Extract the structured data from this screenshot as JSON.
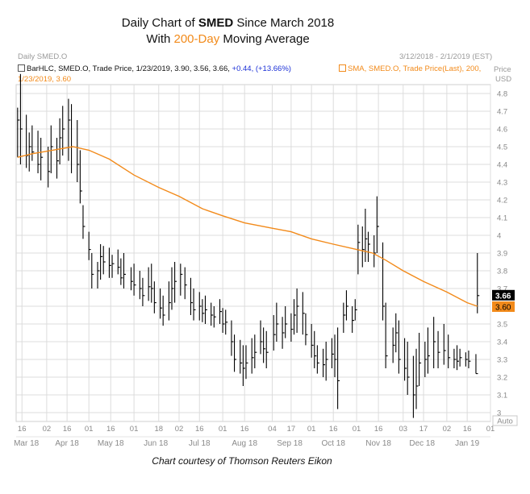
{
  "title": {
    "line1_prefix": "Daily Chart of ",
    "line1_bold": "SMED",
    "line1_suffix": " Since March 2018",
    "line2_prefix": "With ",
    "line2_highlight": "200-Day",
    "line2_suffix": " Moving Average"
  },
  "header": {
    "symbol": "Daily SMED.O",
    "date_range": "3/12/2018 - 2/1/2019 (EST)"
  },
  "legend": {
    "bar_prefix": "BarHLC, SMED.O, Trade Price, 1/23/2019, 3.90, 3.56, 3.66, ",
    "bar_change": "+0.44, (+13.66%)",
    "sma_line1": "SMA, SMED.O, Trade Price(Last), 200,",
    "sma_line2": "1/23/2019, 3.60"
  },
  "axis": {
    "price_label": "Price",
    "unit_label": "USD",
    "auto_label": "Auto",
    "y_ticks": [
      "4.8",
      "4.7",
      "4.6",
      "4.5",
      "4.4",
      "4.3",
      "4.2",
      "4.1",
      "4",
      "3.9",
      "3.8",
      "3.7",
      "3.6",
      "3.5",
      "3.4",
      "3.3",
      "3.2",
      "3.1",
      "3"
    ],
    "day_ticks": [
      "16",
      "02",
      "16",
      "01",
      "16",
      "01",
      "18",
      "02",
      "16",
      "01",
      "16",
      "04",
      "17",
      "01",
      "16",
      "01",
      "16",
      "03",
      "17",
      "02",
      "16",
      "01"
    ],
    "month_ticks": [
      "Mar 18",
      "Apr 18",
      "May 18",
      "Jun 18",
      "Jul 18",
      "Aug 18",
      "Sep 18",
      "Oct 18",
      "Nov 18",
      "Dec 18",
      "Jan 19"
    ]
  },
  "credit": "Chart courtesy of Thomson Reuters Eikon",
  "chart_data": {
    "type": "bar",
    "subtype": "HLC bars with moving average line",
    "x_range": [
      "2018-03-12",
      "2019-02-01"
    ],
    "ylim": [
      2.95,
      4.85
    ],
    "last_price_label": "3.66",
    "ma_label": "3.60",
    "colors": {
      "bars": "#000000",
      "ma": "#f28a1a",
      "grid": "#d9d9d9",
      "legend_change": "#1a2fd6"
    },
    "ma_series": {
      "name": "SMA 200",
      "points": [
        [
          "2018-03-13",
          4.44
        ],
        [
          "2018-03-23",
          4.46
        ],
        [
          "2018-04-06",
          4.48
        ],
        [
          "2018-04-20",
          4.5
        ],
        [
          "2018-05-01",
          4.48
        ],
        [
          "2018-05-15",
          4.43
        ],
        [
          "2018-06-01",
          4.34
        ],
        [
          "2018-06-18",
          4.27
        ],
        [
          "2018-07-02",
          4.22
        ],
        [
          "2018-07-18",
          4.15
        ],
        [
          "2018-08-01",
          4.11
        ],
        [
          "2018-08-16",
          4.07
        ],
        [
          "2018-09-04",
          4.04
        ],
        [
          "2018-09-17",
          4.02
        ],
        [
          "2018-10-01",
          3.98
        ],
        [
          "2018-10-16",
          3.95
        ],
        [
          "2018-11-01",
          3.92
        ],
        [
          "2018-11-12",
          3.9
        ],
        [
          "2018-11-21",
          3.86
        ],
        [
          "2018-12-03",
          3.8
        ],
        [
          "2018-12-17",
          3.74
        ],
        [
          "2019-01-02",
          3.68
        ],
        [
          "2019-01-16",
          3.62
        ],
        [
          "2019-01-23",
          3.6
        ]
      ]
    },
    "hlc_bars": [
      [
        "2018-03-13",
        4.72,
        4.44,
        4.65
      ],
      [
        "2018-03-15",
        4.91,
        4.4,
        4.6
      ],
      [
        "2018-03-19",
        4.68,
        4.38,
        4.45
      ],
      [
        "2018-03-21",
        4.58,
        4.36,
        4.5
      ],
      [
        "2018-03-23",
        4.62,
        4.42,
        4.47
      ],
      [
        "2018-03-27",
        4.59,
        4.35,
        4.4
      ],
      [
        "2018-03-29",
        4.55,
        4.31,
        4.44
      ],
      [
        "2018-04-03",
        4.5,
        4.27,
        4.36
      ],
      [
        "2018-04-05",
        4.62,
        4.35,
        4.5
      ],
      [
        "2018-04-09",
        4.55,
        4.32,
        4.42
      ],
      [
        "2018-04-11",
        4.66,
        4.4,
        4.55
      ],
      [
        "2018-04-13",
        4.73,
        4.45,
        4.6
      ],
      [
        "2018-04-17",
        4.77,
        4.42,
        4.65
      ],
      [
        "2018-04-19",
        4.74,
        4.35,
        4.5
      ],
      [
        "2018-04-23",
        4.65,
        4.3,
        4.4
      ],
      [
        "2018-04-25",
        4.48,
        4.18,
        4.25
      ],
      [
        "2018-04-27",
        4.17,
        3.98,
        4.05
      ],
      [
        "2018-05-01",
        4.02,
        3.86,
        3.92
      ],
      [
        "2018-05-03",
        3.9,
        3.7,
        3.78
      ],
      [
        "2018-05-07",
        3.85,
        3.7,
        3.8
      ],
      [
        "2018-05-09",
        3.95,
        3.75,
        3.88
      ],
      [
        "2018-05-11",
        3.94,
        3.78,
        3.85
      ],
      [
        "2018-05-15",
        3.93,
        3.76,
        3.83
      ],
      [
        "2018-05-17",
        3.89,
        3.76,
        3.84
      ],
      [
        "2018-05-21",
        3.92,
        3.78,
        3.82
      ],
      [
        "2018-05-23",
        3.87,
        3.72,
        3.76
      ],
      [
        "2018-05-25",
        3.9,
        3.7,
        3.78
      ],
      [
        "2018-05-30",
        3.82,
        3.69,
        3.74
      ],
      [
        "2018-06-01",
        3.84,
        3.66,
        3.72
      ],
      [
        "2018-06-05",
        3.8,
        3.64,
        3.7
      ],
      [
        "2018-06-07",
        3.76,
        3.6,
        3.66
      ],
      [
        "2018-06-11",
        3.82,
        3.63,
        3.71
      ],
      [
        "2018-06-13",
        3.84,
        3.62,
        3.7
      ],
      [
        "2018-06-15",
        3.74,
        3.56,
        3.62
      ],
      [
        "2018-06-19",
        3.7,
        3.53,
        3.59
      ],
      [
        "2018-06-21",
        3.66,
        3.49,
        3.55
      ],
      [
        "2018-06-25",
        3.74,
        3.52,
        3.62
      ],
      [
        "2018-06-27",
        3.82,
        3.58,
        3.7
      ],
      [
        "2018-06-29",
        3.85,
        3.62,
        3.74
      ],
      [
        "2018-07-03",
        3.84,
        3.66,
        3.78
      ],
      [
        "2018-07-06",
        3.82,
        3.64,
        3.72
      ],
      [
        "2018-07-10",
        3.76,
        3.55,
        3.62
      ],
      [
        "2018-07-12",
        3.7,
        3.52,
        3.58
      ],
      [
        "2018-07-16",
        3.68,
        3.52,
        3.6
      ],
      [
        "2018-07-18",
        3.64,
        3.51,
        3.56
      ],
      [
        "2018-07-20",
        3.66,
        3.5,
        3.58
      ],
      [
        "2018-07-24",
        3.62,
        3.49,
        3.55
      ],
      [
        "2018-07-26",
        3.6,
        3.48,
        3.54
      ],
      [
        "2018-07-30",
        3.64,
        3.5,
        3.57
      ],
      [
        "2018-08-01",
        3.59,
        3.45,
        3.5
      ],
      [
        "2018-08-03",
        3.58,
        3.44,
        3.51
      ],
      [
        "2018-08-07",
        3.52,
        3.32,
        3.4
      ],
      [
        "2018-08-09",
        3.44,
        3.23,
        3.3
      ],
      [
        "2018-08-13",
        3.41,
        3.22,
        3.28
      ],
      [
        "2018-08-15",
        3.38,
        3.15,
        3.25
      ],
      [
        "2018-08-17",
        3.38,
        3.19,
        3.28
      ],
      [
        "2018-08-21",
        3.42,
        3.22,
        3.31
      ],
      [
        "2018-08-23",
        3.44,
        3.25,
        3.34
      ],
      [
        "2018-08-27",
        3.52,
        3.33,
        3.4
      ],
      [
        "2018-08-29",
        3.48,
        3.28,
        3.36
      ],
      [
        "2018-08-31",
        3.46,
        3.25,
        3.34
      ],
      [
        "2018-09-05",
        3.55,
        3.35,
        3.44
      ],
      [
        "2018-09-07",
        3.62,
        3.4,
        3.5
      ],
      [
        "2018-09-11",
        3.54,
        3.36,
        3.45
      ],
      [
        "2018-09-13",
        3.6,
        3.42,
        3.5
      ],
      [
        "2018-09-17",
        3.56,
        3.4,
        3.47
      ],
      [
        "2018-09-19",
        3.64,
        3.44,
        3.55
      ],
      [
        "2018-09-21",
        3.7,
        3.45,
        3.6
      ],
      [
        "2018-09-25",
        3.68,
        3.44,
        3.56
      ],
      [
        "2018-09-27",
        3.56,
        3.38,
        3.44
      ],
      [
        "2018-10-01",
        3.5,
        3.31,
        3.38
      ],
      [
        "2018-10-03",
        3.46,
        3.25,
        3.32
      ],
      [
        "2018-10-05",
        3.38,
        3.22,
        3.28
      ],
      [
        "2018-10-09",
        3.36,
        3.2,
        3.27
      ],
      [
        "2018-10-11",
        3.4,
        3.18,
        3.3
      ],
      [
        "2018-10-15",
        3.42,
        3.25,
        3.33
      ],
      [
        "2018-10-17",
        3.44,
        3.2,
        3.3
      ],
      [
        "2018-10-19",
        3.48,
        3.02,
        3.18
      ],
      [
        "2018-10-23",
        3.62,
        3.45,
        3.55
      ],
      [
        "2018-10-25",
        3.69,
        3.52,
        3.6
      ],
      [
        "2018-10-29",
        3.6,
        3.45,
        3.52
      ],
      [
        "2018-10-31",
        3.64,
        3.52,
        3.58
      ],
      [
        "2018-11-02",
        4.06,
        3.78,
        3.96
      ],
      [
        "2018-11-05",
        4.05,
        3.82,
        3.92
      ],
      [
        "2018-11-07",
        4.15,
        3.85,
        3.98
      ],
      [
        "2018-11-09",
        4.02,
        3.85,
        3.95
      ],
      [
        "2018-11-13",
        4.0,
        3.82,
        3.9
      ],
      [
        "2018-11-15",
        4.22,
        3.9,
        4.05
      ],
      [
        "2018-11-19",
        3.96,
        3.52,
        3.6
      ],
      [
        "2018-11-21",
        3.62,
        3.25,
        3.32
      ],
      [
        "2018-11-26",
        3.48,
        3.28,
        3.38
      ],
      [
        "2018-11-28",
        3.56,
        3.34,
        3.45
      ],
      [
        "2018-11-30",
        3.52,
        3.22,
        3.3
      ],
      [
        "2018-12-04",
        3.42,
        3.18,
        3.25
      ],
      [
        "2018-12-06",
        3.4,
        3.1,
        3.2
      ],
      [
        "2018-12-10",
        3.32,
        2.97,
        3.1
      ],
      [
        "2018-12-12",
        3.36,
        3.02,
        3.15
      ],
      [
        "2018-12-14",
        3.45,
        3.15,
        3.28
      ],
      [
        "2018-12-18",
        3.4,
        3.2,
        3.3
      ],
      [
        "2018-12-20",
        3.48,
        3.22,
        3.32
      ],
      [
        "2018-12-24",
        3.54,
        3.25,
        3.4
      ],
      [
        "2018-12-27",
        3.46,
        3.25,
        3.34
      ],
      [
        "2018-12-31",
        3.5,
        3.27,
        3.35
      ],
      [
        "2019-01-03",
        3.44,
        3.25,
        3.31
      ],
      [
        "2019-01-07",
        3.36,
        3.25,
        3.3
      ],
      [
        "2019-01-09",
        3.38,
        3.24,
        3.29
      ],
      [
        "2019-01-11",
        3.36,
        3.26,
        3.31
      ],
      [
        "2019-01-15",
        3.34,
        3.26,
        3.3
      ],
      [
        "2019-01-17",
        3.35,
        3.25,
        3.29
      ],
      [
        "2019-01-22",
        3.33,
        3.22,
        3.22
      ],
      [
        "2019-01-23",
        3.9,
        3.56,
        3.66
      ]
    ]
  }
}
